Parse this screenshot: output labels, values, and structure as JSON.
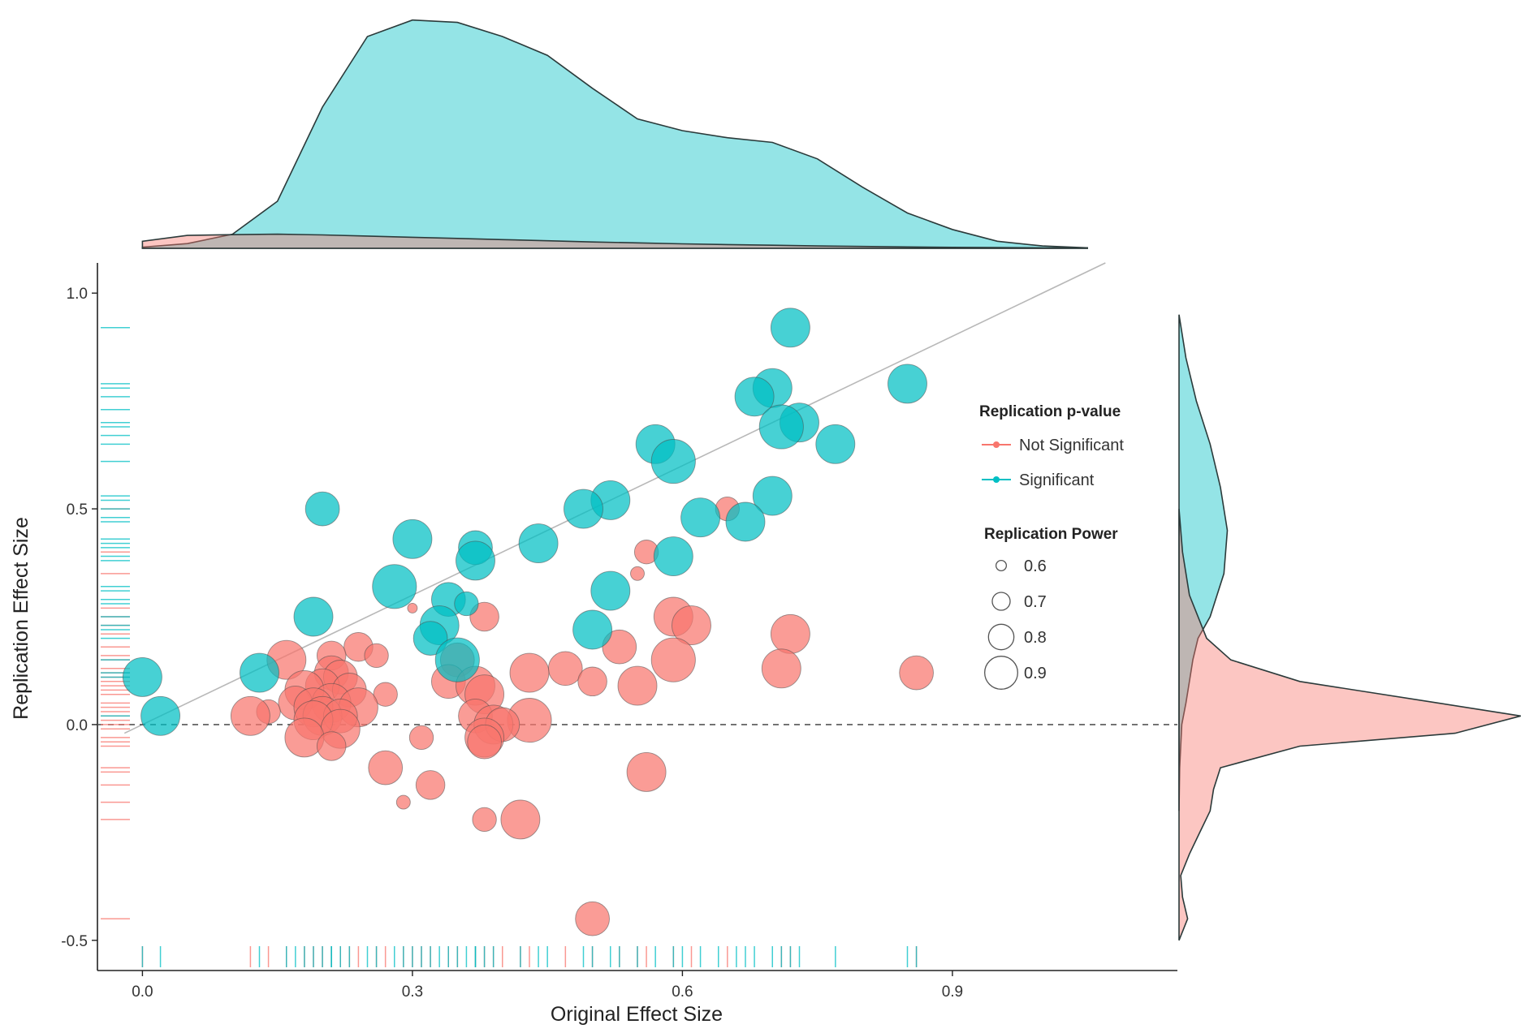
{
  "chart_data": {
    "type": "scatter",
    "title": "",
    "xlabel": "Original Effect Size",
    "ylabel": "Replication Effect Size",
    "xlim": [
      -0.05,
      1.15
    ],
    "ylim": [
      -0.57,
      1.07
    ],
    "x_ticks": [
      0.0,
      0.3,
      0.6,
      0.9
    ],
    "x_tick_labels": [
      "0.0",
      "0.3",
      "0.6",
      "0.9"
    ],
    "y_ticks": [
      -0.5,
      0.0,
      0.5,
      1.0
    ],
    "y_tick_labels": [
      "-0.5",
      "0.0",
      "0.5",
      "1.0"
    ],
    "grid": false,
    "reference_lines": [
      {
        "kind": "identity",
        "from": [
          -0.02,
          -0.02
        ],
        "to": [
          1.07,
          1.07
        ],
        "color": "#b8b8b8",
        "style": "solid"
      },
      {
        "kind": "horizontal",
        "y": 0.0,
        "color": "#555555",
        "style": "dashed"
      }
    ],
    "legend": {
      "placement": "right-inside",
      "color_title": "Replication p-value",
      "color_entries": [
        {
          "label": "Not Significant",
          "color": "#f8766d"
        },
        {
          "label": "Significant",
          "color": "#00bfc4"
        }
      ],
      "size_title": "Replication Power",
      "size_entries": [
        {
          "label": "0.6",
          "value": 0.6
        },
        {
          "label": "0.7",
          "value": 0.7
        },
        {
          "label": "0.8",
          "value": 0.8
        },
        {
          "label": "0.9",
          "value": 0.9
        }
      ]
    },
    "marginal_x_density": {
      "significant": [
        [
          0.0,
          0.005
        ],
        [
          0.05,
          0.02
        ],
        [
          0.1,
          0.06
        ],
        [
          0.15,
          0.2
        ],
        [
          0.2,
          0.6
        ],
        [
          0.25,
          0.9
        ],
        [
          0.3,
          0.97
        ],
        [
          0.35,
          0.96
        ],
        [
          0.4,
          0.9
        ],
        [
          0.45,
          0.82
        ],
        [
          0.5,
          0.68
        ],
        [
          0.55,
          0.55
        ],
        [
          0.6,
          0.5
        ],
        [
          0.65,
          0.47
        ],
        [
          0.7,
          0.45
        ],
        [
          0.75,
          0.38
        ],
        [
          0.8,
          0.26
        ],
        [
          0.85,
          0.15
        ],
        [
          0.9,
          0.08
        ],
        [
          0.95,
          0.03
        ],
        [
          1.0,
          0.01
        ],
        [
          1.05,
          0.002
        ]
      ],
      "not_significant": [
        [
          0.0,
          0.03
        ],
        [
          0.05,
          0.055
        ],
        [
          0.1,
          0.058
        ],
        [
          0.15,
          0.06
        ],
        [
          0.2,
          0.057
        ],
        [
          0.25,
          0.052
        ],
        [
          0.3,
          0.047
        ],
        [
          0.35,
          0.042
        ],
        [
          0.4,
          0.037
        ],
        [
          0.45,
          0.032
        ],
        [
          0.5,
          0.027
        ],
        [
          0.55,
          0.023
        ],
        [
          0.6,
          0.019
        ],
        [
          0.65,
          0.016
        ],
        [
          0.7,
          0.013
        ],
        [
          0.75,
          0.01
        ],
        [
          0.8,
          0.008
        ],
        [
          0.85,
          0.006
        ],
        [
          0.9,
          0.004
        ],
        [
          0.95,
          0.003
        ],
        [
          1.0,
          0.002
        ],
        [
          1.05,
          0.002
        ]
      ]
    },
    "marginal_y_density": {
      "significant": [
        [
          0.95,
          0.0
        ],
        [
          0.85,
          0.02
        ],
        [
          0.75,
          0.05
        ],
        [
          0.65,
          0.09
        ],
        [
          0.55,
          0.12
        ],
        [
          0.45,
          0.14
        ],
        [
          0.35,
          0.13
        ],
        [
          0.3,
          0.11
        ],
        [
          0.25,
          0.09
        ],
        [
          0.2,
          0.055
        ],
        [
          0.15,
          0.04
        ],
        [
          0.1,
          0.03
        ],
        [
          0.05,
          0.02
        ],
        [
          0.0,
          0.008
        ],
        [
          -0.1,
          0.002
        ],
        [
          -0.2,
          0.0
        ]
      ],
      "not_significant": [
        [
          0.5,
          0.0
        ],
        [
          0.4,
          0.01
        ],
        [
          0.3,
          0.03
        ],
        [
          0.2,
          0.08
        ],
        [
          0.15,
          0.15
        ],
        [
          0.1,
          0.35
        ],
        [
          0.05,
          0.75
        ],
        [
          0.02,
          0.99
        ],
        [
          -0.02,
          0.8
        ],
        [
          -0.05,
          0.35
        ],
        [
          -0.1,
          0.12
        ],
        [
          -0.15,
          0.1
        ],
        [
          -0.2,
          0.09
        ],
        [
          -0.25,
          0.06
        ],
        [
          -0.3,
          0.03
        ],
        [
          -0.35,
          0.005
        ],
        [
          -0.4,
          0.01
        ],
        [
          -0.45,
          0.025
        ],
        [
          -0.5,
          0.0
        ]
      ]
    },
    "series": [
      {
        "name": "Significant",
        "color": "#00bfc4",
        "points": [
          {
            "x": 0.72,
            "y": 0.92,
            "power": 0.85
          },
          {
            "x": 0.85,
            "y": 0.79,
            "power": 0.85
          },
          {
            "x": 0.7,
            "y": 0.78,
            "power": 0.85
          },
          {
            "x": 0.68,
            "y": 0.76,
            "power": 0.85
          },
          {
            "x": 0.73,
            "y": 0.7,
            "power": 0.85
          },
          {
            "x": 0.71,
            "y": 0.69,
            "power": 0.9
          },
          {
            "x": 0.77,
            "y": 0.65,
            "power": 0.85
          },
          {
            "x": 0.57,
            "y": 0.65,
            "power": 0.85
          },
          {
            "x": 0.59,
            "y": 0.61,
            "power": 0.9
          },
          {
            "x": 0.52,
            "y": 0.52,
            "power": 0.85
          },
          {
            "x": 0.49,
            "y": 0.5,
            "power": 0.85
          },
          {
            "x": 0.2,
            "y": 0.5,
            "power": 0.8
          },
          {
            "x": 0.7,
            "y": 0.53,
            "power": 0.85
          },
          {
            "x": 0.62,
            "y": 0.48,
            "power": 0.85
          },
          {
            "x": 0.67,
            "y": 0.47,
            "power": 0.85
          },
          {
            "x": 0.3,
            "y": 0.43,
            "power": 0.85
          },
          {
            "x": 0.44,
            "y": 0.42,
            "power": 0.85
          },
          {
            "x": 0.37,
            "y": 0.41,
            "power": 0.8
          },
          {
            "x": 0.37,
            "y": 0.38,
            "power": 0.85
          },
          {
            "x": 0.59,
            "y": 0.39,
            "power": 0.85
          },
          {
            "x": 0.28,
            "y": 0.32,
            "power": 0.9
          },
          {
            "x": 0.52,
            "y": 0.31,
            "power": 0.85
          },
          {
            "x": 0.34,
            "y": 0.29,
            "power": 0.8
          },
          {
            "x": 0.36,
            "y": 0.28,
            "power": 0.7
          },
          {
            "x": 0.19,
            "y": 0.25,
            "power": 0.85
          },
          {
            "x": 0.33,
            "y": 0.23,
            "power": 0.85
          },
          {
            "x": 0.32,
            "y": 0.2,
            "power": 0.8
          },
          {
            "x": 0.5,
            "y": 0.22,
            "power": 0.85
          },
          {
            "x": 0.35,
            "y": 0.15,
            "power": 0.9
          },
          {
            "x": 0.13,
            "y": 0.12,
            "power": 0.85
          },
          {
            "x": 0.0,
            "y": 0.11,
            "power": 0.85
          },
          {
            "x": 0.02,
            "y": 0.02,
            "power": 0.85
          }
        ]
      },
      {
        "name": "Not Significant",
        "color": "#f8766d",
        "points": [
          {
            "x": 0.65,
            "y": 0.5,
            "power": 0.7
          },
          {
            "x": 0.56,
            "y": 0.4,
            "power": 0.7
          },
          {
            "x": 0.55,
            "y": 0.35,
            "power": 0.6
          },
          {
            "x": 0.3,
            "y": 0.27,
            "power": 0.55
          },
          {
            "x": 0.38,
            "y": 0.25,
            "power": 0.75
          },
          {
            "x": 0.59,
            "y": 0.25,
            "power": 0.85
          },
          {
            "x": 0.61,
            "y": 0.23,
            "power": 0.85
          },
          {
            "x": 0.72,
            "y": 0.21,
            "power": 0.85
          },
          {
            "x": 0.53,
            "y": 0.18,
            "power": 0.8
          },
          {
            "x": 0.24,
            "y": 0.18,
            "power": 0.75
          },
          {
            "x": 0.26,
            "y": 0.16,
            "power": 0.7
          },
          {
            "x": 0.21,
            "y": 0.16,
            "power": 0.75
          },
          {
            "x": 0.16,
            "y": 0.15,
            "power": 0.85
          },
          {
            "x": 0.35,
            "y": 0.15,
            "power": 0.8
          },
          {
            "x": 0.59,
            "y": 0.15,
            "power": 0.9
          },
          {
            "x": 0.47,
            "y": 0.13,
            "power": 0.8
          },
          {
            "x": 0.71,
            "y": 0.13,
            "power": 0.85
          },
          {
            "x": 0.86,
            "y": 0.12,
            "power": 0.8
          },
          {
            "x": 0.43,
            "y": 0.12,
            "power": 0.85
          },
          {
            "x": 0.21,
            "y": 0.12,
            "power": 0.8
          },
          {
            "x": 0.22,
            "y": 0.11,
            "power": 0.8
          },
          {
            "x": 0.34,
            "y": 0.1,
            "power": 0.8
          },
          {
            "x": 0.5,
            "y": 0.1,
            "power": 0.75
          },
          {
            "x": 0.55,
            "y": 0.09,
            "power": 0.85
          },
          {
            "x": 0.37,
            "y": 0.09,
            "power": 0.85
          },
          {
            "x": 0.2,
            "y": 0.09,
            "power": 0.8
          },
          {
            "x": 0.18,
            "y": 0.08,
            "power": 0.85
          },
          {
            "x": 0.23,
            "y": 0.08,
            "power": 0.8
          },
          {
            "x": 0.38,
            "y": 0.07,
            "power": 0.85
          },
          {
            "x": 0.27,
            "y": 0.07,
            "power": 0.7
          },
          {
            "x": 0.17,
            "y": 0.05,
            "power": 0.8
          },
          {
            "x": 0.21,
            "y": 0.05,
            "power": 0.85
          },
          {
            "x": 0.24,
            "y": 0.04,
            "power": 0.85
          },
          {
            "x": 0.19,
            "y": 0.04,
            "power": 0.85
          },
          {
            "x": 0.14,
            "y": 0.03,
            "power": 0.7
          },
          {
            "x": 0.12,
            "y": 0.02,
            "power": 0.85
          },
          {
            "x": 0.2,
            "y": 0.02,
            "power": 0.85
          },
          {
            "x": 0.22,
            "y": 0.02,
            "power": 0.8
          },
          {
            "x": 0.37,
            "y": 0.02,
            "power": 0.8
          },
          {
            "x": 0.43,
            "y": 0.01,
            "power": 0.9
          },
          {
            "x": 0.19,
            "y": 0.01,
            "power": 0.85
          },
          {
            "x": 0.39,
            "y": 0.0,
            "power": 0.85
          },
          {
            "x": 0.4,
            "y": 0.0,
            "power": 0.8
          },
          {
            "x": 0.22,
            "y": -0.01,
            "power": 0.85
          },
          {
            "x": 0.18,
            "y": -0.03,
            "power": 0.85
          },
          {
            "x": 0.38,
            "y": -0.03,
            "power": 0.85
          },
          {
            "x": 0.31,
            "y": -0.03,
            "power": 0.7
          },
          {
            "x": 0.38,
            "y": -0.04,
            "power": 0.8
          },
          {
            "x": 0.21,
            "y": -0.05,
            "power": 0.75
          },
          {
            "x": 0.27,
            "y": -0.1,
            "power": 0.8
          },
          {
            "x": 0.56,
            "y": -0.11,
            "power": 0.85
          },
          {
            "x": 0.32,
            "y": -0.14,
            "power": 0.75
          },
          {
            "x": 0.29,
            "y": -0.18,
            "power": 0.6
          },
          {
            "x": 0.38,
            "y": -0.22,
            "power": 0.7
          },
          {
            "x": 0.42,
            "y": -0.22,
            "power": 0.85
          },
          {
            "x": 0.5,
            "y": -0.45,
            "power": 0.8
          }
        ]
      }
    ],
    "rug_x": {
      "significant": [
        0.0,
        0.02,
        0.13,
        0.16,
        0.17,
        0.18,
        0.19,
        0.2,
        0.21,
        0.21,
        0.22,
        0.23,
        0.25,
        0.26,
        0.28,
        0.29,
        0.3,
        0.31,
        0.32,
        0.33,
        0.34,
        0.35,
        0.36,
        0.37,
        0.37,
        0.38,
        0.39,
        0.42,
        0.44,
        0.45,
        0.49,
        0.5,
        0.52,
        0.53,
        0.55,
        0.57,
        0.59,
        0.6,
        0.62,
        0.64,
        0.66,
        0.67,
        0.68,
        0.7,
        0.71,
        0.72,
        0.73,
        0.77,
        0.85,
        0.86
      ],
      "not_significant": [
        0.0,
        0.12,
        0.14,
        0.16,
        0.18,
        0.19,
        0.2,
        0.21,
        0.22,
        0.23,
        0.24,
        0.26,
        0.27,
        0.29,
        0.3,
        0.31,
        0.32,
        0.34,
        0.35,
        0.37,
        0.38,
        0.39,
        0.4,
        0.42,
        0.43,
        0.47,
        0.5,
        0.53,
        0.55,
        0.56,
        0.59,
        0.61,
        0.65,
        0.71,
        0.72,
        0.86
      ]
    },
    "rug_y": {
      "significant": [
        0.92,
        0.79,
        0.78,
        0.76,
        0.73,
        0.7,
        0.69,
        0.67,
        0.65,
        0.61,
        0.53,
        0.52,
        0.5,
        0.48,
        0.47,
        0.43,
        0.42,
        0.41,
        0.39,
        0.38,
        0.32,
        0.31,
        0.29,
        0.28,
        0.25,
        0.23,
        0.22,
        0.2,
        0.15,
        0.12,
        0.11,
        0.02
      ],
      "not_significant": [
        0.5,
        0.4,
        0.35,
        0.27,
        0.25,
        0.23,
        0.21,
        0.18,
        0.16,
        0.15,
        0.13,
        0.12,
        0.11,
        0.1,
        0.09,
        0.08,
        0.07,
        0.05,
        0.04,
        0.03,
        0.02,
        0.01,
        0.0,
        -0.01,
        -0.03,
        -0.04,
        -0.05,
        -0.1,
        -0.11,
        -0.14,
        -0.18,
        -0.22,
        -0.45
      ]
    }
  }
}
